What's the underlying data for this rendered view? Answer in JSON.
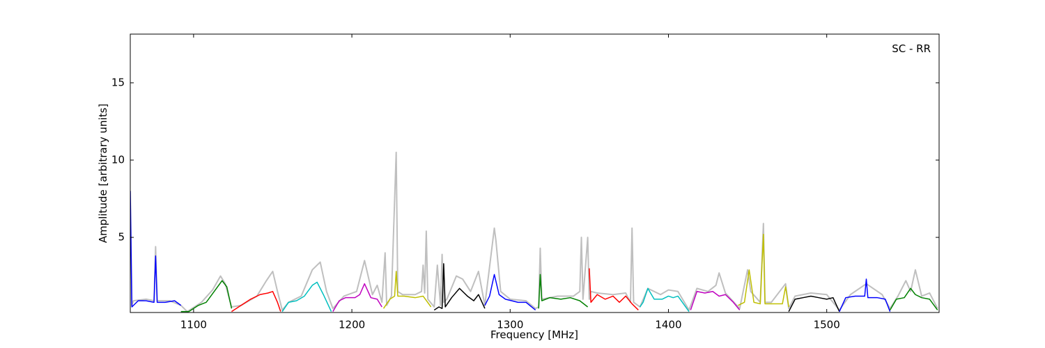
{
  "chart_data": {
    "type": "line",
    "xlabel": "Frequency [MHz]",
    "ylabel": "Amplitude [arbitrary units]",
    "annotation": "SC - RR",
    "xlim": [
      1060,
      1571
    ],
    "ylim": [
      0.14,
      18.15
    ],
    "xticks": [
      1100,
      1200,
      1300,
      1400,
      1500
    ],
    "yticks": [
      5,
      10,
      15
    ],
    "series": [
      {
        "color": "#bfbfbf",
        "x": [
          1060,
          1061,
          1062,
          1070,
          1075,
          1076,
          1077,
          1085,
          1092,
          1096,
          1105,
          1112,
          1117,
          1120,
          1124,
          1130,
          1140,
          1146,
          1150,
          1153,
          1156,
          1160,
          1168,
          1175,
          1180,
          1184,
          1188,
          1195,
          1203,
          1208,
          1213,
          1216,
          1219,
          1221,
          1222,
          1225,
          1228,
          1229,
          1232,
          1240,
          1244,
          1245,
          1246,
          1247,
          1248,
          1252,
          1254,
          1256,
          1257,
          1258,
          1260,
          1266,
          1270,
          1275,
          1280,
          1284,
          1290,
          1291,
          1294,
          1300,
          1310,
          1316,
          1318,
          1319,
          1320,
          1330,
          1340,
          1344,
          1345,
          1346,
          1349,
          1350,
          1351,
          1355,
          1365,
          1373,
          1376,
          1377,
          1378,
          1382,
          1387,
          1395,
          1400,
          1406,
          1413,
          1418,
          1425,
          1430,
          1432,
          1436,
          1445,
          1450,
          1452,
          1458,
          1460,
          1461,
          1465,
          1474,
          1476,
          1480,
          1490,
          1500,
          1508,
          1515,
          1525,
          1535,
          1540,
          1545,
          1550,
          1553,
          1556,
          1560,
          1565,
          1570
        ],
        "values": [
          8.0,
          0.6,
          0.9,
          1.0,
          0.9,
          4.4,
          0.9,
          0.9,
          0.6,
          0.2,
          0.8,
          1.6,
          2.5,
          2.0,
          0.5,
          0.6,
          1.2,
          2.2,
          2.8,
          1.5,
          0.3,
          0.8,
          1.2,
          2.9,
          3.4,
          1.5,
          0.4,
          1.2,
          1.5,
          3.5,
          1.3,
          1.9,
          0.8,
          4.0,
          0.6,
          1.2,
          10.5,
          1.5,
          1.3,
          1.3,
          1.5,
          3.2,
          1.4,
          5.4,
          1.0,
          0.5,
          3.2,
          0.6,
          3.9,
          0.8,
          1.0,
          2.5,
          2.3,
          1.5,
          2.8,
          0.6,
          5.6,
          4.8,
          1.5,
          1.0,
          0.9,
          0.4,
          0.5,
          4.3,
          1.0,
          1.2,
          1.2,
          1.5,
          5.0,
          1.0,
          5.0,
          1.0,
          1.5,
          1.4,
          1.3,
          1.4,
          0.8,
          5.6,
          0.8,
          0.5,
          1.7,
          1.3,
          1.6,
          1.5,
          0.3,
          1.7,
          1.5,
          1.9,
          2.7,
          1.4,
          0.4,
          2.9,
          1.5,
          0.8,
          5.9,
          0.8,
          0.8,
          2.0,
          0.4,
          1.2,
          1.4,
          1.3,
          0.3,
          1.3,
          2.0,
          1.3,
          0.4,
          1.2,
          2.2,
          1.5,
          2.9,
          1.2,
          1.4,
          0.4
        ]
      },
      {
        "color": "#0000ff",
        "x": [
          1060,
          1061,
          1065,
          1070,
          1075,
          1076,
          1077,
          1082,
          1088,
          1092
        ],
        "values": [
          8.0,
          0.5,
          0.9,
          0.9,
          0.8,
          3.8,
          0.8,
          0.8,
          0.9,
          0.6
        ]
      },
      {
        "color": "#008000",
        "x": [
          1092,
          1097,
          1103,
          1108,
          1113,
          1118,
          1121,
          1124
        ],
        "values": [
          0.2,
          0.2,
          0.6,
          0.8,
          1.5,
          2.2,
          1.8,
          0.4
        ]
      },
      {
        "color": "#ff0000",
        "x": [
          1124,
          1130,
          1136,
          1142,
          1147,
          1150,
          1153,
          1155
        ],
        "values": [
          0.2,
          0.6,
          1.0,
          1.3,
          1.4,
          1.5,
          0.8,
          0.2
        ]
      },
      {
        "color": "#00bfbf",
        "x": [
          1156,
          1160,
          1165,
          1170,
          1175,
          1178,
          1182,
          1187
        ],
        "values": [
          0.2,
          0.8,
          0.9,
          1.2,
          1.9,
          2.1,
          1.3,
          0.2
        ]
      },
      {
        "color": "#bf00bf",
        "x": [
          1188,
          1192,
          1196,
          1202,
          1205,
          1208,
          1212,
          1216,
          1219
        ],
        "values": [
          0.2,
          0.9,
          1.1,
          1.1,
          1.3,
          2.0,
          1.1,
          1.0,
          0.5
        ]
      },
      {
        "color": "#bfbf00",
        "x": [
          1220,
          1224,
          1227,
          1228,
          1229,
          1233,
          1240,
          1245,
          1250
        ],
        "values": [
          0.4,
          1.0,
          1.2,
          2.8,
          1.2,
          1.2,
          1.1,
          1.2,
          0.5
        ]
      },
      {
        "color": "#000000",
        "x": [
          1252,
          1255,
          1257,
          1258,
          1259,
          1263,
          1268,
          1273,
          1277,
          1280,
          1284
        ],
        "values": [
          0.3,
          0.5,
          0.4,
          3.3,
          0.5,
          1.1,
          1.7,
          1.2,
          0.9,
          1.3,
          0.4
        ]
      },
      {
        "color": "#0000ff",
        "x": [
          1284,
          1287,
          1290,
          1293,
          1297,
          1305,
          1310,
          1316
        ],
        "values": [
          0.6,
          1.2,
          2.6,
          1.3,
          1.0,
          0.8,
          0.8,
          0.3
        ]
      },
      {
        "color": "#008000",
        "x": [
          1318,
          1319,
          1320,
          1325,
          1332,
          1338,
          1344,
          1349
        ],
        "values": [
          0.4,
          2.6,
          0.9,
          1.1,
          1.0,
          1.1,
          0.9,
          0.5
        ]
      },
      {
        "color": "#ff0000",
        "x": [
          1350,
          1351,
          1355,
          1360,
          1365,
          1369,
          1373,
          1377,
          1381
        ],
        "values": [
          3.0,
          0.8,
          1.3,
          1.0,
          1.2,
          0.8,
          1.2,
          0.7,
          0.3
        ]
      },
      {
        "color": "#00bfbf",
        "x": [
          1382,
          1384,
          1387,
          1391,
          1396,
          1400,
          1403,
          1406,
          1413
        ],
        "values": [
          0.5,
          0.8,
          1.7,
          1.0,
          1.0,
          1.2,
          1.1,
          1.2,
          0.2
        ]
      },
      {
        "color": "#bf00bf",
        "x": [
          1414,
          1418,
          1423,
          1428,
          1432,
          1436,
          1441,
          1445
        ],
        "values": [
          0.3,
          1.5,
          1.4,
          1.5,
          1.2,
          1.3,
          0.8,
          0.3
        ]
      },
      {
        "color": "#bfbf00",
        "x": [
          1444,
          1448,
          1451,
          1454,
          1458,
          1460,
          1461,
          1466,
          1472,
          1474,
          1476
        ],
        "values": [
          0.6,
          0.8,
          2.9,
          0.8,
          0.7,
          5.2,
          0.7,
          0.7,
          0.7,
          1.8,
          0.5
        ]
      },
      {
        "color": "#000000",
        "x": [
          1476,
          1480,
          1485,
          1490,
          1495,
          1500,
          1504,
          1508
        ],
        "values": [
          0.2,
          1.0,
          1.1,
          1.2,
          1.1,
          1.0,
          1.1,
          0.2
        ]
      },
      {
        "color": "#0000ff",
        "x": [
          1508,
          1512,
          1518,
          1524,
          1525,
          1526,
          1532,
          1537,
          1540
        ],
        "values": [
          0.2,
          1.1,
          1.2,
          1.2,
          2.3,
          1.1,
          1.1,
          1.0,
          0.2
        ]
      },
      {
        "color": "#008000",
        "x": [
          1540,
          1544,
          1549,
          1553,
          1556,
          1560,
          1565,
          1570
        ],
        "values": [
          0.3,
          1.0,
          1.1,
          1.7,
          1.3,
          1.1,
          1.0,
          0.3
        ]
      }
    ]
  }
}
